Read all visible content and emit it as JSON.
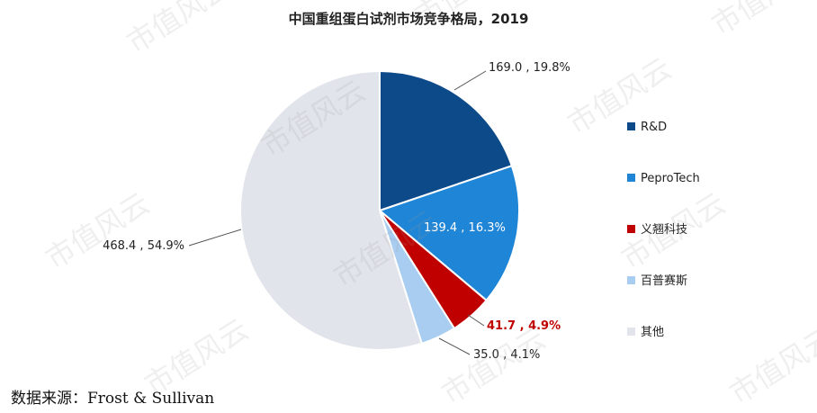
{
  "chart_data": {
    "type": "pie",
    "title": "中国重组蛋白试剂市场竞争格局，2019",
    "slices": [
      {
        "name": "R&D",
        "value": 169.0,
        "percent": "19.8%",
        "label": "169.0 , 19.8%",
        "color": "#0d4a8a"
      },
      {
        "name": "PeproTech",
        "value": 139.4,
        "percent": "16.3%",
        "label": "139.4 , 16.3%",
        "color": "#1f85d6"
      },
      {
        "name": "义翘科技",
        "value": 41.7,
        "percent": "4.9%",
        "label": "41.7 , 4.9%",
        "color": "#c00000"
      },
      {
        "name": "百普赛斯",
        "value": 35.0,
        "percent": "4.1%",
        "label": "35.0 , 4.1%",
        "color": "#a8cdf0"
      },
      {
        "name": "其他",
        "value": 468.4,
        "percent": "54.9%",
        "label": "468.4 , 54.9%",
        "color": "#e1e4ea"
      }
    ],
    "legend_position": "right"
  },
  "source": "数据来源：Frost & Sullivan",
  "watermark": "市值风云"
}
